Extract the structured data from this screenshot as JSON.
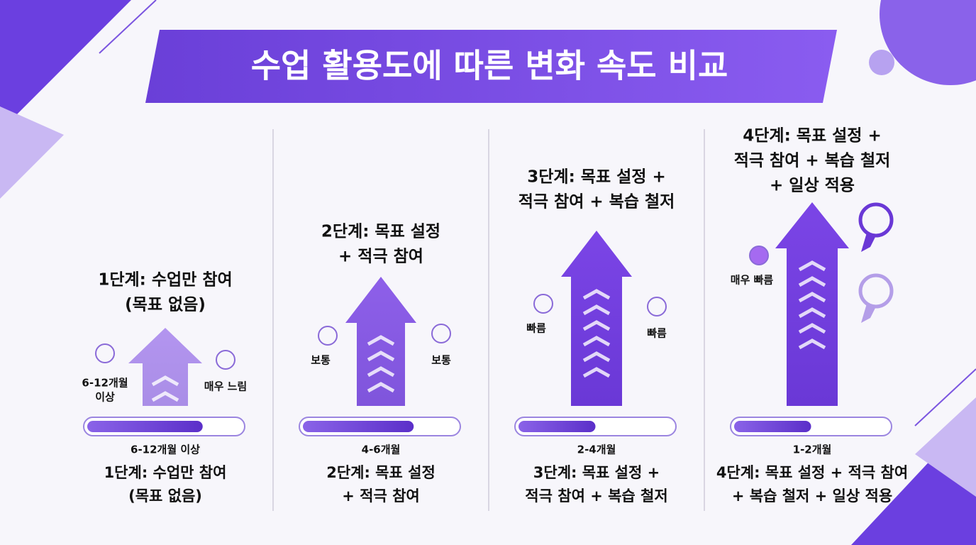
{
  "title": "수업 활용도에 따른 변화 속도 비교",
  "columns": [
    {
      "heading": [
        "1단계: 수업만 참여",
        "(목표 없음)"
      ],
      "left": [
        "6-12개월",
        "이상"
      ],
      "right": [
        "매우 느림"
      ],
      "duration": "6-12개월 이상",
      "footer": [
        "1단계: 수업만 참여",
        "(목표 없음)"
      ]
    },
    {
      "heading": [
        "2단계: 목표 설정",
        "+ 적극 참여"
      ],
      "left": [
        "보통"
      ],
      "right": [
        "보통"
      ],
      "duration": "4-6개월",
      "footer": [
        "2단계: 목표 설정",
        "+ 적극 참여"
      ]
    },
    {
      "heading": [
        "3단계: 목표 설정 +",
        "적극 참여 + 복습 철저"
      ],
      "left": [
        "빠름"
      ],
      "right": [
        "빠름"
      ],
      "duration": "2-4개월",
      "footer": [
        "3단계: 목표 설정 +",
        "적극 참여 + 복습 철저"
      ]
    },
    {
      "heading": [
        "4단계: 목표 설정 +",
        "적극 참여 + 복습 철저",
        "+ 일상 적용"
      ],
      "left": [
        "매우 빠름"
      ],
      "duration": "1-2개월",
      "footer": [
        "4단계: 목표 설정 + 적극 참여",
        "+ 복습 철저 + 일상 적용"
      ]
    }
  ]
}
